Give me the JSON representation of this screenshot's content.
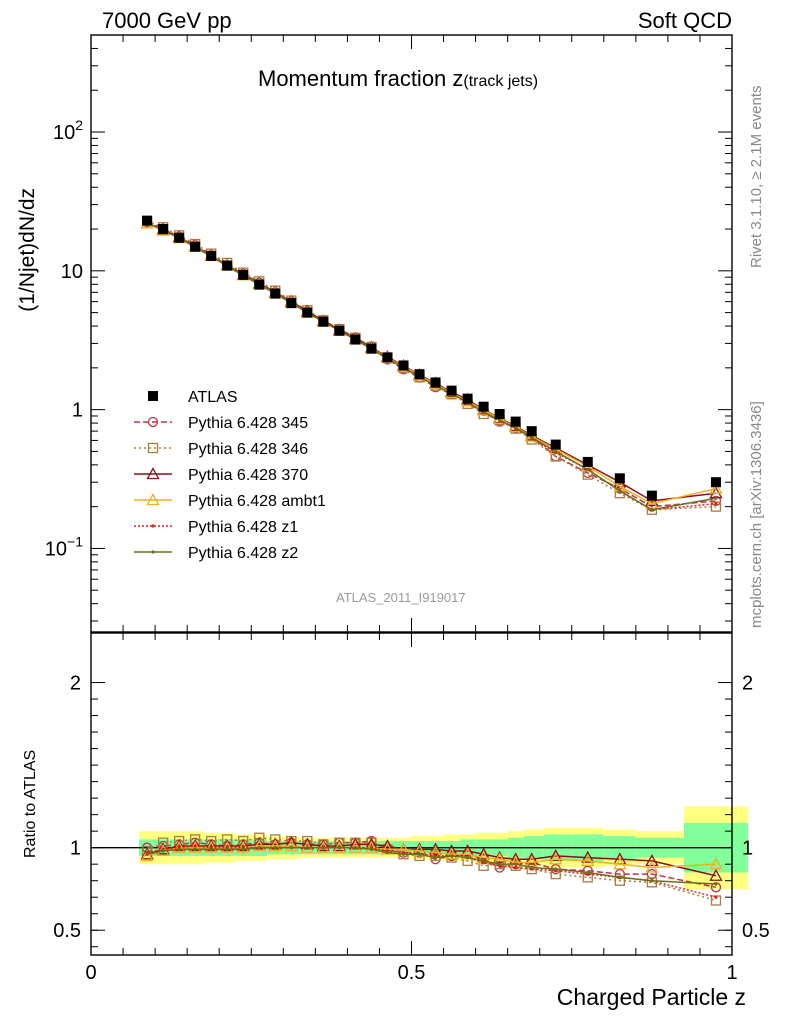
{
  "header": {
    "left": "7000 GeV pp",
    "right": "Soft QCD"
  },
  "side_text": {
    "rivet": "Rivet 3.1.10, ≥ 2.1M events",
    "mcplots": "mcplots.cern.ch [arXiv:1306.3436]"
  },
  "analysis_tag": "ATLAS_2011_I919017",
  "colors": {
    "data": "#000000",
    "p345": "#c0304a",
    "p346": "#a87c3c",
    "p370": "#8c1020",
    "ambt1": "#f0b020",
    "z1": "#e02020",
    "z2": "#6a7018",
    "band_inner": "#80ff9a",
    "band_outer": "#ffff80"
  },
  "chart_data": [
    {
      "type": "line",
      "title": "Momentum fraction z",
      "title_sub": "(track jets)",
      "ylabel": "(1/Njet)dN/dz",
      "yscale": "log",
      "xlim": [
        0,
        1
      ],
      "ylim": [
        0.025,
        500
      ],
      "ytick_labels": [
        "10^-1",
        "1",
        "10",
        "10^2"
      ],
      "legend_position": "left-middle",
      "x": [
        0.0875,
        0.1125,
        0.1375,
        0.1625,
        0.1875,
        0.2125,
        0.2375,
        0.2625,
        0.2875,
        0.3125,
        0.3375,
        0.3625,
        0.3875,
        0.4125,
        0.4375,
        0.4625,
        0.4875,
        0.5125,
        0.5375,
        0.5625,
        0.5875,
        0.6125,
        0.6375,
        0.6625,
        0.6875,
        0.725,
        0.775,
        0.825,
        0.875,
        0.975
      ],
      "data": {
        "name": "ATLAS",
        "values": [
          23.0,
          20.0,
          17.3,
          14.9,
          12.8,
          10.9,
          9.35,
          7.95,
          6.85,
          5.85,
          5.0,
          4.3,
          3.7,
          3.2,
          2.75,
          2.38,
          2.08,
          1.8,
          1.57,
          1.37,
          1.2,
          1.05,
          0.93,
          0.82,
          0.7,
          0.56,
          0.42,
          0.32,
          0.24,
          0.3
        ]
      },
      "series": [
        {
          "name": "Pythia 6.428 345",
          "color_key": "p345",
          "marker": "circle",
          "dash": "6,3",
          "values": [
            22.5,
            20.1,
            17.6,
            15.3,
            13.0,
            11.0,
            9.5,
            8.2,
            7.0,
            6.0,
            5.1,
            4.4,
            3.8,
            3.3,
            2.85,
            2.3,
            1.95,
            1.7,
            1.45,
            1.3,
            1.15,
            0.98,
            0.82,
            0.74,
            0.64,
            0.46,
            0.35,
            0.27,
            0.2,
            0.22
          ]
        },
        {
          "name": "Pythia 6.428 346",
          "color_key": "p346",
          "marker": "square",
          "dash": "2,3",
          "values": [
            22.8,
            20.6,
            18.0,
            15.6,
            13.3,
            11.4,
            9.7,
            8.4,
            7.2,
            6.1,
            5.2,
            4.4,
            3.8,
            3.3,
            2.83,
            2.35,
            2.0,
            1.71,
            1.49,
            1.29,
            1.1,
            0.93,
            0.84,
            0.73,
            0.61,
            0.46,
            0.34,
            0.25,
            0.19,
            0.2
          ]
        },
        {
          "name": "Pythia 6.428 370",
          "color_key": "p370",
          "marker": "triangle",
          "dash": "",
          "values": [
            22.0,
            19.8,
            17.5,
            15.0,
            12.9,
            11.0,
            9.4,
            8.1,
            7.0,
            6.0,
            5.1,
            4.35,
            3.75,
            3.25,
            2.8,
            2.4,
            2.07,
            1.78,
            1.55,
            1.34,
            1.18,
            1.0,
            0.87,
            0.76,
            0.65,
            0.53,
            0.4,
            0.3,
            0.22,
            0.25
          ]
        },
        {
          "name": "Pythia 6.428 ambt1",
          "color_key": "ambt1",
          "marker": "triangle",
          "dash": "",
          "values": [
            22.0,
            19.5,
            17.2,
            14.9,
            12.8,
            10.9,
            9.3,
            8.0,
            6.9,
            5.9,
            5.0,
            4.3,
            3.7,
            3.2,
            2.76,
            2.36,
            2.05,
            1.76,
            1.53,
            1.32,
            1.15,
            0.99,
            0.86,
            0.75,
            0.64,
            0.52,
            0.39,
            0.28,
            0.21,
            0.27
          ]
        },
        {
          "name": "Pythia 6.428 z1",
          "color_key": "z1",
          "marker": "dot",
          "dash": "2,2",
          "values": [
            22.3,
            19.8,
            17.4,
            15.0,
            12.8,
            10.9,
            9.3,
            8.0,
            6.9,
            5.9,
            5.0,
            4.3,
            3.7,
            3.2,
            2.75,
            2.33,
            2.02,
            1.73,
            1.5,
            1.3,
            1.12,
            0.95,
            0.83,
            0.73,
            0.62,
            0.49,
            0.37,
            0.26,
            0.19,
            0.21
          ]
        },
        {
          "name": "Pythia 6.428 z2",
          "color_key": "z2",
          "marker": "dot",
          "dash": "",
          "values": [
            22.2,
            19.6,
            17.2,
            14.8,
            12.7,
            10.8,
            9.25,
            7.95,
            6.85,
            5.85,
            5.0,
            4.3,
            3.7,
            3.2,
            2.73,
            2.32,
            2.0,
            1.72,
            1.48,
            1.3,
            1.13,
            0.96,
            0.84,
            0.74,
            0.63,
            0.5,
            0.37,
            0.26,
            0.19,
            0.23
          ]
        }
      ]
    },
    {
      "type": "line",
      "ylabel": "Ratio to ATLAS",
      "xlabel": "Charged Particle z",
      "xlim": [
        0,
        1
      ],
      "ylim": [
        0.35,
        2.3
      ],
      "ytick_labels": [
        "0.5",
        "1",
        "2"
      ],
      "xtick_labels": [
        "0",
        "0.5",
        "1"
      ],
      "reference_line": 1.0,
      "band_inner": [
        0.05,
        0.05,
        0.05,
        0.05,
        0.05,
        0.05,
        0.05,
        0.05,
        0.04,
        0.04,
        0.04,
        0.04,
        0.04,
        0.04,
        0.04,
        0.04,
        0.04,
        0.04,
        0.04,
        0.04,
        0.05,
        0.05,
        0.05,
        0.06,
        0.07,
        0.08,
        0.08,
        0.07,
        0.06,
        0.15
      ],
      "band_outer": [
        0.1,
        0.1,
        0.1,
        0.1,
        0.09,
        0.09,
        0.08,
        0.08,
        0.07,
        0.07,
        0.06,
        0.06,
        0.06,
        0.06,
        0.06,
        0.06,
        0.06,
        0.07,
        0.07,
        0.08,
        0.08,
        0.09,
        0.09,
        0.1,
        0.11,
        0.12,
        0.12,
        0.11,
        0.1,
        0.25
      ],
      "series": [
        {
          "name": "Pythia 6.428 345",
          "color_key": "p345",
          "marker": "circle",
          "dash": "6,3",
          "values": [
            1.0,
            1.01,
            1.02,
            1.03,
            1.02,
            1.01,
            1.02,
            1.03,
            1.02,
            1.03,
            1.02,
            1.02,
            1.03,
            1.03,
            1.04,
            0.99,
            0.97,
            0.97,
            0.93,
            0.95,
            0.96,
            0.93,
            0.88,
            0.9,
            0.91,
            0.87,
            0.86,
            0.84,
            0.84,
            0.76
          ]
        },
        {
          "name": "Pythia 6.428 346",
          "color_key": "p346",
          "marker": "square",
          "dash": "2,3",
          "values": [
            0.98,
            1.03,
            1.04,
            1.05,
            1.04,
            1.05,
            1.04,
            1.06,
            1.05,
            1.04,
            1.04,
            1.02,
            1.03,
            1.03,
            1.03,
            0.99,
            0.96,
            0.95,
            0.95,
            0.94,
            0.92,
            0.89,
            0.9,
            0.89,
            0.87,
            0.84,
            0.82,
            0.8,
            0.79,
            0.68
          ]
        },
        {
          "name": "Pythia 6.428 370",
          "color_key": "p370",
          "marker": "triangle",
          "dash": "",
          "values": [
            0.96,
            0.99,
            1.01,
            1.01,
            1.01,
            1.01,
            1.01,
            1.02,
            1.02,
            1.03,
            1.02,
            1.01,
            1.01,
            1.02,
            1.02,
            1.01,
            0.99,
            0.99,
            0.99,
            0.98,
            0.98,
            0.96,
            0.94,
            0.93,
            0.93,
            0.95,
            0.94,
            0.93,
            0.92,
            0.83
          ]
        },
        {
          "name": "Pythia 6.428 ambt1",
          "color_key": "ambt1",
          "marker": "triangle",
          "dash": "",
          "values": [
            0.95,
            0.98,
            1.0,
            1.0,
            1.0,
            1.0,
            1.0,
            1.01,
            1.01,
            1.01,
            1.0,
            1.0,
            1.0,
            1.0,
            1.0,
            0.99,
            0.99,
            0.98,
            0.97,
            0.96,
            0.96,
            0.94,
            0.93,
            0.91,
            0.91,
            0.93,
            0.92,
            0.9,
            0.88,
            0.9
          ]
        },
        {
          "name": "Pythia 6.428 z1",
          "color_key": "z1",
          "marker": "dot",
          "dash": "2,2",
          "values": [
            0.97,
            0.99,
            1.0,
            1.01,
            1.0,
            1.0,
            1.0,
            1.0,
            1.0,
            1.0,
            1.0,
            1.0,
            1.0,
            1.0,
            1.0,
            0.98,
            0.97,
            0.96,
            0.95,
            0.95,
            0.94,
            0.91,
            0.89,
            0.88,
            0.87,
            0.86,
            0.84,
            0.82,
            0.8,
            0.7
          ]
        },
        {
          "name": "Pythia 6.428 z2",
          "color_key": "z2",
          "marker": "dot",
          "dash": "",
          "values": [
            0.96,
            0.98,
            0.99,
            0.99,
            0.99,
            0.99,
            0.99,
            1.0,
            1.0,
            1.0,
            1.0,
            1.0,
            1.0,
            1.0,
            0.99,
            0.97,
            0.96,
            0.96,
            0.94,
            0.95,
            0.94,
            0.92,
            0.9,
            0.9,
            0.88,
            0.87,
            0.85,
            0.82,
            0.8,
            0.78
          ]
        }
      ]
    }
  ]
}
